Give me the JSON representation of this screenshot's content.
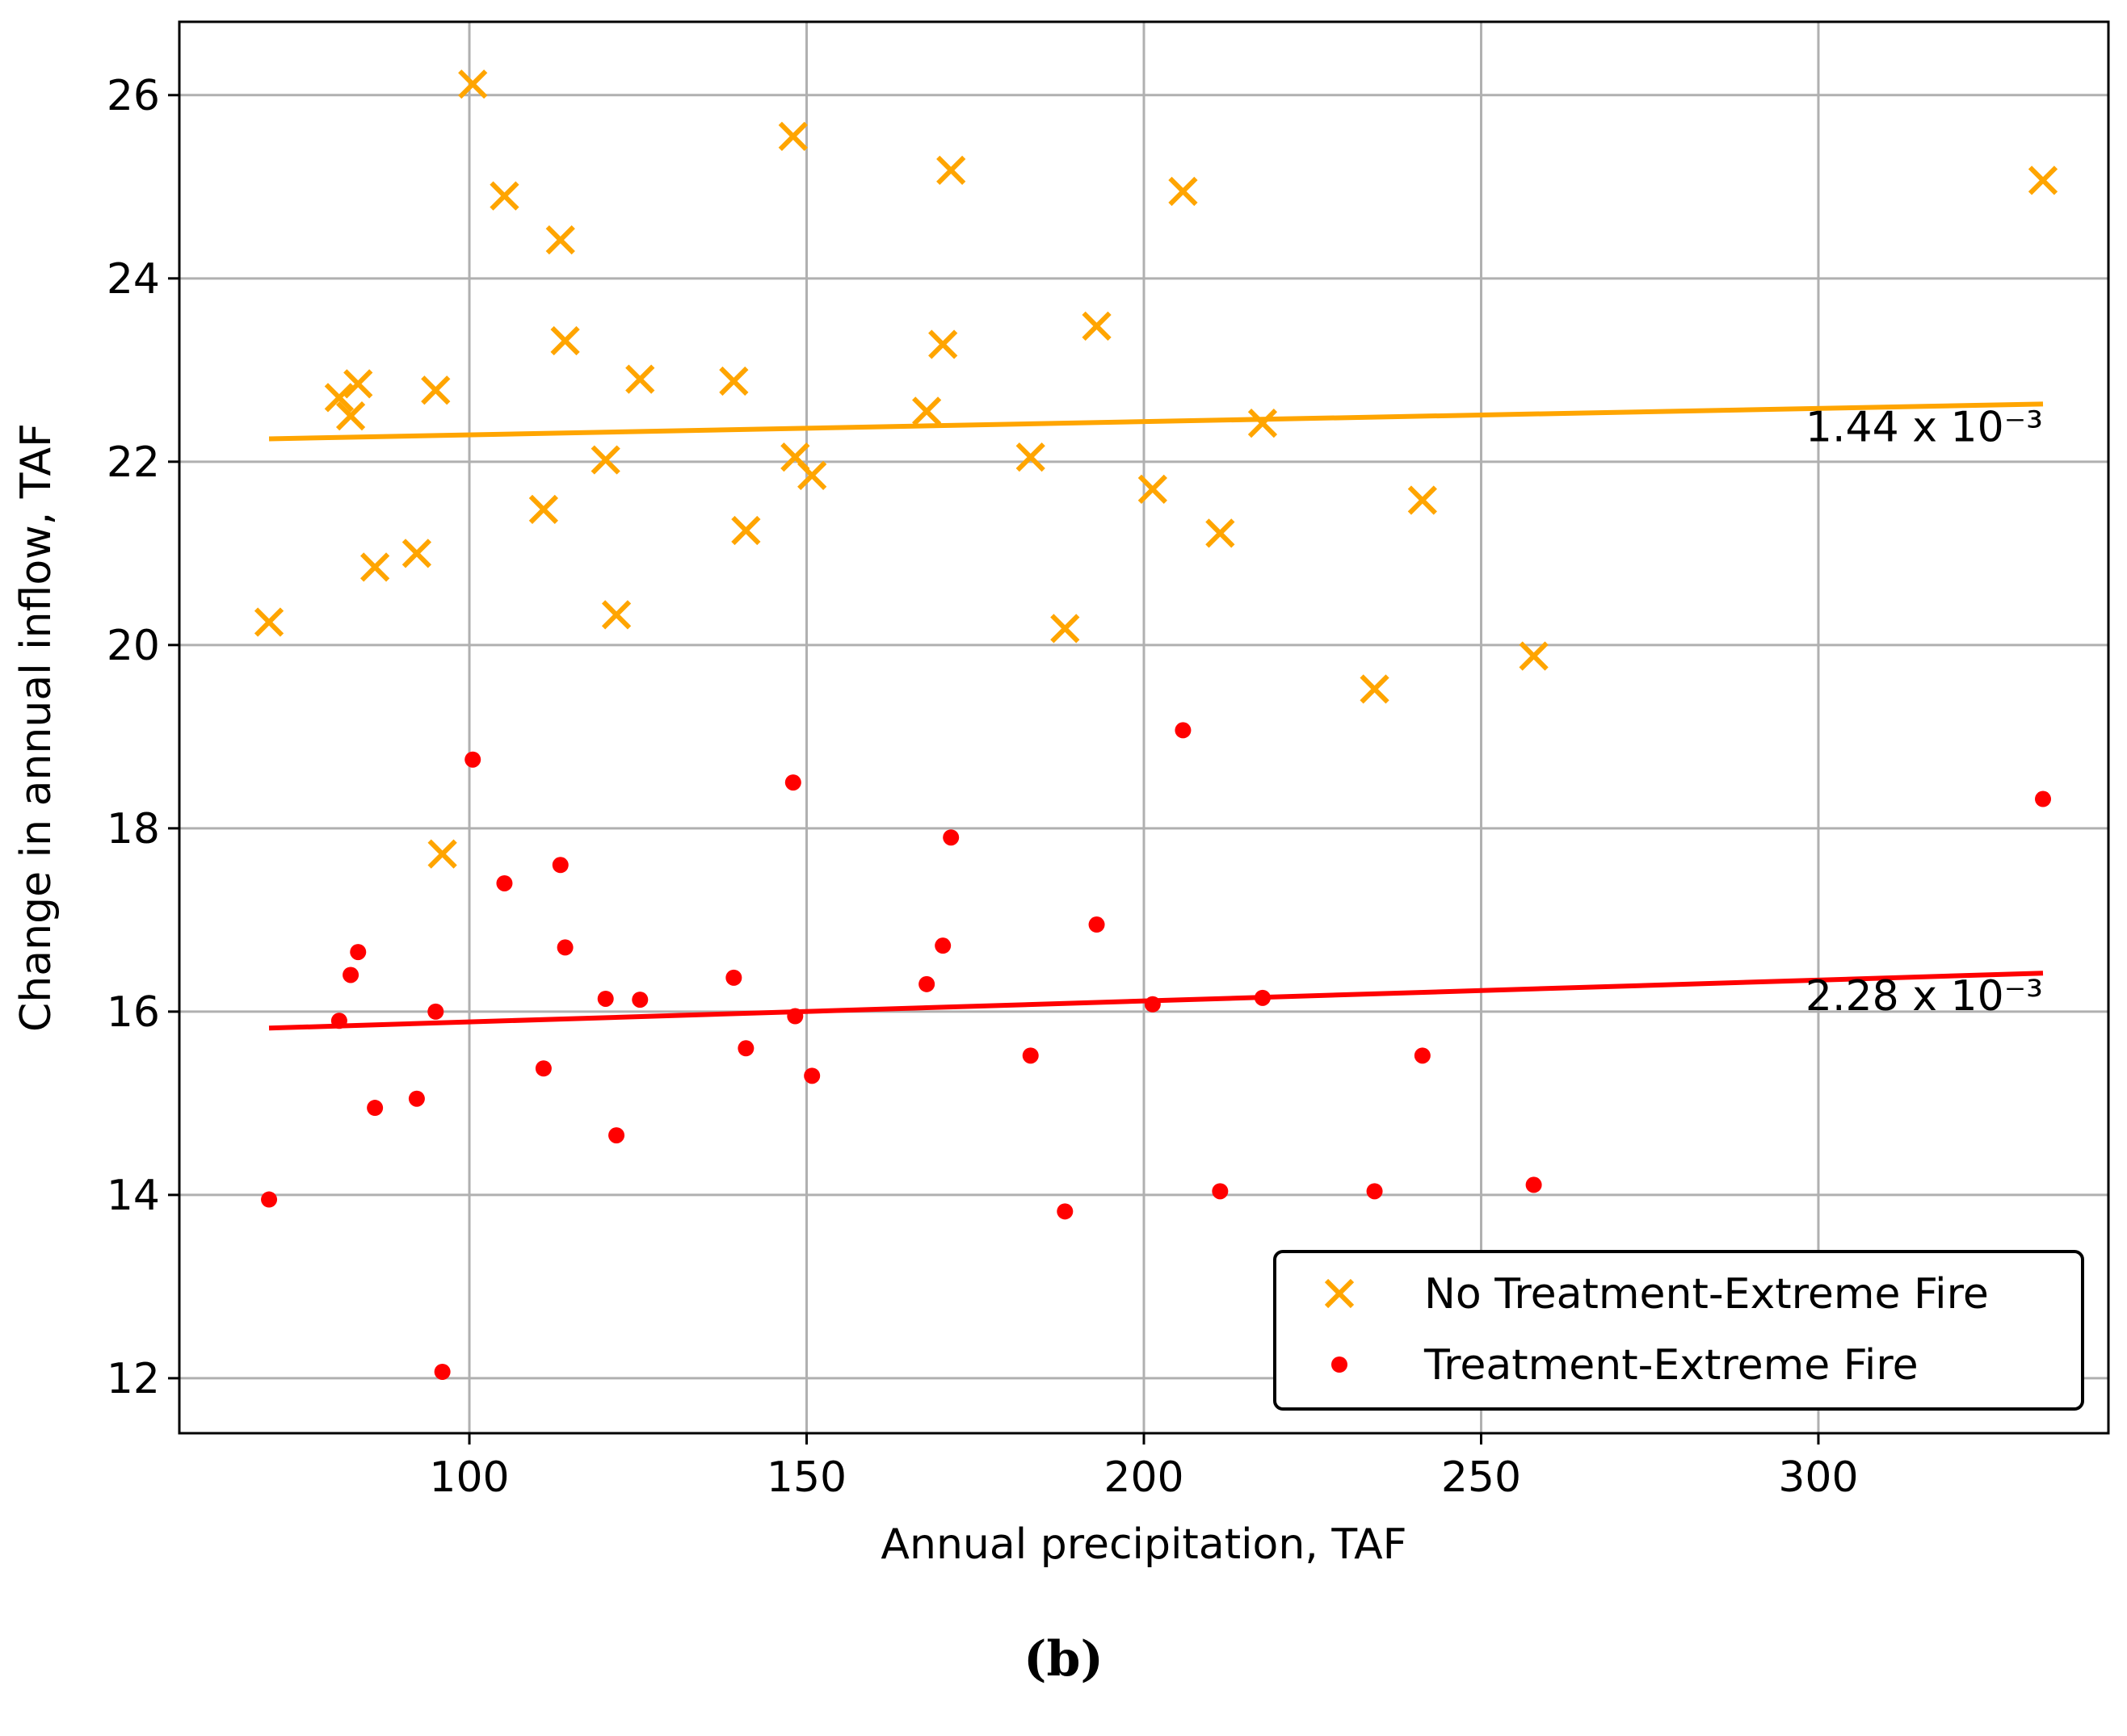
{
  "chart_data": {
    "type": "scatter",
    "title": "",
    "xlabel": "Annual precipitation, TAF",
    "ylabel": "Change in annual inflow, TAF",
    "xlim": [
      57,
      343
    ],
    "ylim": [
      11.4,
      26.8
    ],
    "xticks": [
      100,
      150,
      200,
      250,
      300
    ],
    "yticks": [
      12,
      14,
      16,
      18,
      20,
      22,
      24,
      26
    ],
    "xtick_labels": [
      "100",
      "150",
      "200",
      "250",
      "300"
    ],
    "ytick_labels": [
      "12",
      "14",
      "16",
      "18",
      "20",
      "22",
      "24",
      "26"
    ],
    "grid": true,
    "legend_position": "lower-right",
    "series": [
      {
        "name": "No Treatment-Extreme Fire",
        "marker": "x",
        "color": "#ffa500",
        "points": [
          [
            70.3,
            20.25
          ],
          [
            80.7,
            22.7
          ],
          [
            82.4,
            22.5
          ],
          [
            83.5,
            22.85
          ],
          [
            86.0,
            20.85
          ],
          [
            92.2,
            21.0
          ],
          [
            95.0,
            22.78
          ],
          [
            96.0,
            17.72
          ],
          [
            100.5,
            26.12
          ],
          [
            105.2,
            24.9
          ],
          [
            111.0,
            21.48
          ],
          [
            113.5,
            24.42
          ],
          [
            114.2,
            23.32
          ],
          [
            120.2,
            22.02
          ],
          [
            121.8,
            20.33
          ],
          [
            125.3,
            22.9
          ],
          [
            139.2,
            22.88
          ],
          [
            141.0,
            21.25
          ],
          [
            148.0,
            25.55
          ],
          [
            148.3,
            22.05
          ],
          [
            150.8,
            21.85
          ],
          [
            167.8,
            22.55
          ],
          [
            170.2,
            23.28
          ],
          [
            171.4,
            25.18
          ],
          [
            183.2,
            22.05
          ],
          [
            188.3,
            20.18
          ],
          [
            193.0,
            23.48
          ],
          [
            201.3,
            21.7
          ],
          [
            205.8,
            24.95
          ],
          [
            211.3,
            21.22
          ],
          [
            217.6,
            22.42
          ],
          [
            234.2,
            19.52
          ],
          [
            241.3,
            21.58
          ],
          [
            257.8,
            19.88
          ],
          [
            333.3,
            25.07
          ]
        ],
        "fit": {
          "x": [
            70.3,
            333.3
          ],
          "y": [
            22.25,
            22.63
          ],
          "label": "1.44 x 10⁻³"
        }
      },
      {
        "name": "Treatment-Extreme Fire",
        "marker": "o",
        "color": "#ff0000",
        "points": [
          [
            70.3,
            13.95
          ],
          [
            80.7,
            15.9
          ],
          [
            82.4,
            16.4
          ],
          [
            83.5,
            16.65
          ],
          [
            86.0,
            14.95
          ],
          [
            92.2,
            15.05
          ],
          [
            95.0,
            16.0
          ],
          [
            96.0,
            12.07
          ],
          [
            100.5,
            18.75
          ],
          [
            105.2,
            17.4
          ],
          [
            111.0,
            15.38
          ],
          [
            113.5,
            17.6
          ],
          [
            114.2,
            16.7
          ],
          [
            120.2,
            16.14
          ],
          [
            121.8,
            14.65
          ],
          [
            125.3,
            16.13
          ],
          [
            139.2,
            16.37
          ],
          [
            141.0,
            15.6
          ],
          [
            148.0,
            18.5
          ],
          [
            148.3,
            15.95
          ],
          [
            150.8,
            15.3
          ],
          [
            167.8,
            16.3
          ],
          [
            170.2,
            16.72
          ],
          [
            171.4,
            17.9
          ],
          [
            183.2,
            15.52
          ],
          [
            188.3,
            13.82
          ],
          [
            193.0,
            16.95
          ],
          [
            201.3,
            16.08
          ],
          [
            205.8,
            19.07
          ],
          [
            211.3,
            14.04
          ],
          [
            217.6,
            16.15
          ],
          [
            234.2,
            14.04
          ],
          [
            241.3,
            15.52
          ],
          [
            257.8,
            14.11
          ],
          [
            333.3,
            18.32
          ]
        ],
        "fit": {
          "x": [
            70.3,
            333.3
          ],
          "y": [
            15.82,
            16.42
          ],
          "label": "2.28 x 10⁻³"
        }
      }
    ]
  },
  "caption": "(b)"
}
